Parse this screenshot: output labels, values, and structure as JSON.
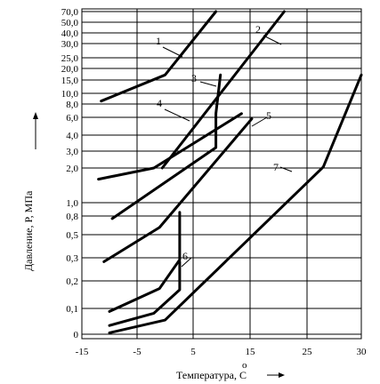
{
  "chart_data": {
    "type": "line",
    "xlabel": "Температура, С",
    "xlabel_degree": "о",
    "ylabel": "Давление, Р, МПа",
    "x_ticks": [
      "-15",
      "-5",
      "5",
      "15",
      "25",
      "30"
    ],
    "y_ticks": [
      "70,0",
      "50,0",
      "40,0",
      "30,0",
      "25,0",
      "20,0",
      "15,0",
      "10,0",
      "8,0",
      "6,0",
      "4,0",
      "3,0",
      "2,0",
      "1,0",
      "0,8",
      "0,5",
      "0,3",
      "0,2",
      "0,1",
      "0"
    ],
    "grid": true,
    "y_scale": "log",
    "series": [
      {
        "name": "1",
        "points": [
          [
            -11.5,
            8.5
          ],
          [
            0,
            17
          ],
          [
            9,
            70
          ]
        ]
      },
      {
        "name": "2",
        "points": [
          [
            -0.5,
            2
          ],
          [
            21,
            70
          ]
        ]
      },
      {
        "name": "3",
        "points": [
          [
            -9.5,
            0.75
          ],
          [
            9,
            3.2
          ],
          [
            9,
            6.5
          ],
          [
            9.8,
            17
          ]
        ]
      },
      {
        "name": "4",
        "points": [
          [
            -12,
            1.6
          ],
          [
            -2,
            2
          ],
          [
            13.5,
            6.5
          ]
        ]
      },
      {
        "name": "5",
        "points": [
          [
            -11,
            0.28
          ],
          [
            -1,
            0.6
          ],
          [
            15.3,
            5.8
          ]
        ]
      },
      {
        "name": "6",
        "points": [
          [
            -10,
            0.087
          ],
          [
            -1,
            0.165
          ],
          [
            2.6,
            0.29
          ],
          [
            2.6,
            0.85
          ]
        ]
      },
      {
        "name": "7",
        "points": [
          [
            -10,
            0.045
          ],
          [
            -2,
            0.08
          ],
          [
            2.6,
            0.16
          ],
          [
            2.6,
            0.28
          ]
        ]
      },
      {
        "name": "",
        "points": [
          [
            -10,
            0.032
          ],
          [
            0,
            0.058
          ],
          [
            26.5,
            2.05
          ],
          [
            30,
            17
          ]
        ]
      }
    ]
  }
}
